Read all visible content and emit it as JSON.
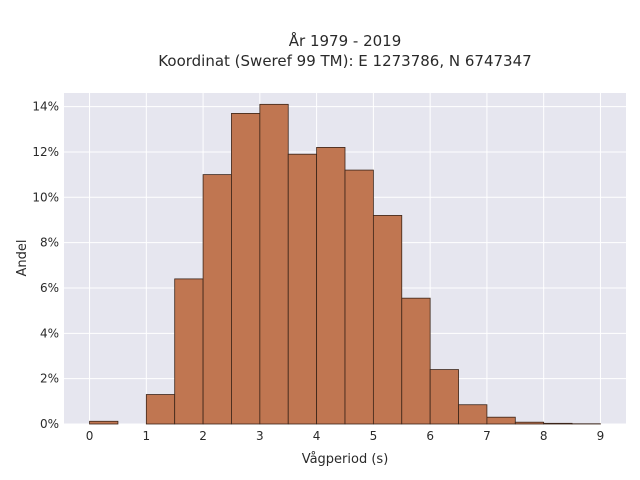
{
  "chart_data": {
    "type": "bar",
    "title": "År 1979 - 2019",
    "subtitle": "Koordinat (Sweref 99 TM): E 1273786, N 6747347",
    "xlabel": "Vågperiod (s)",
    "ylabel": "Andel",
    "xlim": [
      -0.45,
      9.45
    ],
    "ylim": [
      0,
      14.6
    ],
    "x_ticks": [
      0,
      1,
      2,
      3,
      4,
      5,
      6,
      7,
      8,
      9
    ],
    "y_ticks": [
      0,
      2,
      4,
      6,
      8,
      10,
      12,
      14
    ],
    "y_tick_suffix": "%",
    "bin_width": 0.5,
    "bin_starts": [
      0,
      0.5,
      1,
      1.5,
      2,
      2.5,
      3,
      3.5,
      4,
      4.5,
      5,
      5.5,
      6,
      6.5,
      7,
      7.5,
      8,
      8.5
    ],
    "values": [
      0.12,
      0,
      1.3,
      6.4,
      11.0,
      13.7,
      14.1,
      11.9,
      12.2,
      11.2,
      9.2,
      5.55,
      2.4,
      0.85,
      0.3,
      0.08,
      0.03,
      0.01
    ],
    "grid": true,
    "legend": "none",
    "colors": {
      "bar_fill": "#c07651",
      "bar_edge": "#3b2418",
      "plot_background": "#e6e6ef",
      "grid": "#ffffff",
      "text": "#2a2a2a"
    }
  }
}
